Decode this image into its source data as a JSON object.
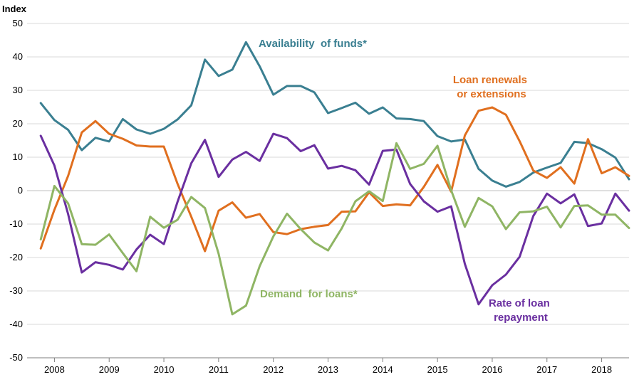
{
  "chart_data": {
    "type": "line",
    "ylabel": "Index",
    "ylim": [
      -50,
      50
    ],
    "yticks": [
      50,
      40,
      30,
      20,
      10,
      0,
      -10,
      -20,
      -30,
      -40,
      -50
    ],
    "x_start": 2007.5,
    "x_step": 0.25,
    "x_end": 2018.5,
    "year_labels": [
      "2008",
      "2009",
      "2010",
      "2011",
      "2012",
      "2013",
      "2014",
      "2015",
      "2016",
      "2017",
      "2018"
    ],
    "series": [
      {
        "name": "Availability of funds*",
        "label_lines": [
          "Availability  of funds*"
        ],
        "color": "#3a7f91",
        "values": [
          26.2,
          21.1,
          18.2,
          12.1,
          15.8,
          14.7,
          21.4,
          18.3,
          17.0,
          18.5,
          21.3,
          25.5,
          39.2,
          34.3,
          36.2,
          44.4,
          37.2,
          28.7,
          31.3,
          31.3,
          29.4,
          23.2,
          24.7,
          26.3,
          23.0,
          24.9,
          21.6,
          21.4,
          20.8,
          16.3,
          14.7,
          15.3,
          6.5,
          3.0,
          1.2,
          2.6,
          5.4,
          6.9,
          8.3,
          14.6,
          14.2,
          12.4,
          9.9,
          3.4
        ]
      },
      {
        "name": "Loan renewals or extensions",
        "label_lines": [
          "Loan renewals",
          "or extensions"
        ],
        "color": "#e06f1f",
        "values": [
          -17.3,
          -5.7,
          4.4,
          17.4,
          20.8,
          17.0,
          15.5,
          13.5,
          13.2,
          13.2,
          2.0,
          -7.8,
          -18.1,
          -6.0,
          -3.5,
          -8.1,
          -7.0,
          -12.4,
          -13.0,
          -11.5,
          -10.8,
          -10.3,
          -6.3,
          -6.2,
          -0.5,
          -4.6,
          -4.1,
          -4.4,
          1.1,
          7.7,
          -0.3,
          16.5,
          23.9,
          24.9,
          22.7,
          14.8,
          6.0,
          3.8,
          7.0,
          2.1,
          15.4,
          5.2,
          7.0,
          4.4
        ]
      },
      {
        "name": "Rate of loan repayment",
        "label_lines": [
          "Rate of loan",
          "repayment"
        ],
        "color": "#6a2fa0",
        "values": [
          16.4,
          7.5,
          -7.0,
          -24.5,
          -21.4,
          -22.2,
          -23.6,
          -17.6,
          -13.2,
          -16.0,
          -3.3,
          8.2,
          15.2,
          4.1,
          9.3,
          11.6,
          8.9,
          17.0,
          15.7,
          11.8,
          13.6,
          6.6,
          7.4,
          6.1,
          1.8,
          11.9,
          12.3,
          2.0,
          -3.2,
          -6.3,
          -4.7,
          -21.9,
          -34.0,
          -28.3,
          -25.1,
          -19.8,
          -7.6,
          -0.9,
          -3.8,
          -1.1,
          -10.6,
          -9.8,
          -0.9,
          -6.0
        ]
      },
      {
        "name": "Demand for loans*",
        "label_lines": [
          "Demand  for loans*"
        ],
        "color": "#8fb564",
        "values": [
          -14.6,
          1.4,
          -3.8,
          -16.0,
          -16.2,
          -13.1,
          -18.7,
          -24.1,
          -7.8,
          -11.1,
          -8.7,
          -1.9,
          -5.2,
          -18.9,
          -37.0,
          -34.4,
          -22.6,
          -13.7,
          -6.9,
          -11.5,
          -15.5,
          -17.9,
          -11.3,
          -3.2,
          -0.2,
          -3.1,
          14.2,
          6.5,
          8.0,
          13.4,
          0.1,
          -10.8,
          -2.2,
          -4.7,
          -11.5,
          -6.5,
          -6.2,
          -4.8,
          -11.0,
          -4.6,
          -4.4,
          -7.2,
          -7.2,
          -11.2
        ]
      }
    ]
  }
}
